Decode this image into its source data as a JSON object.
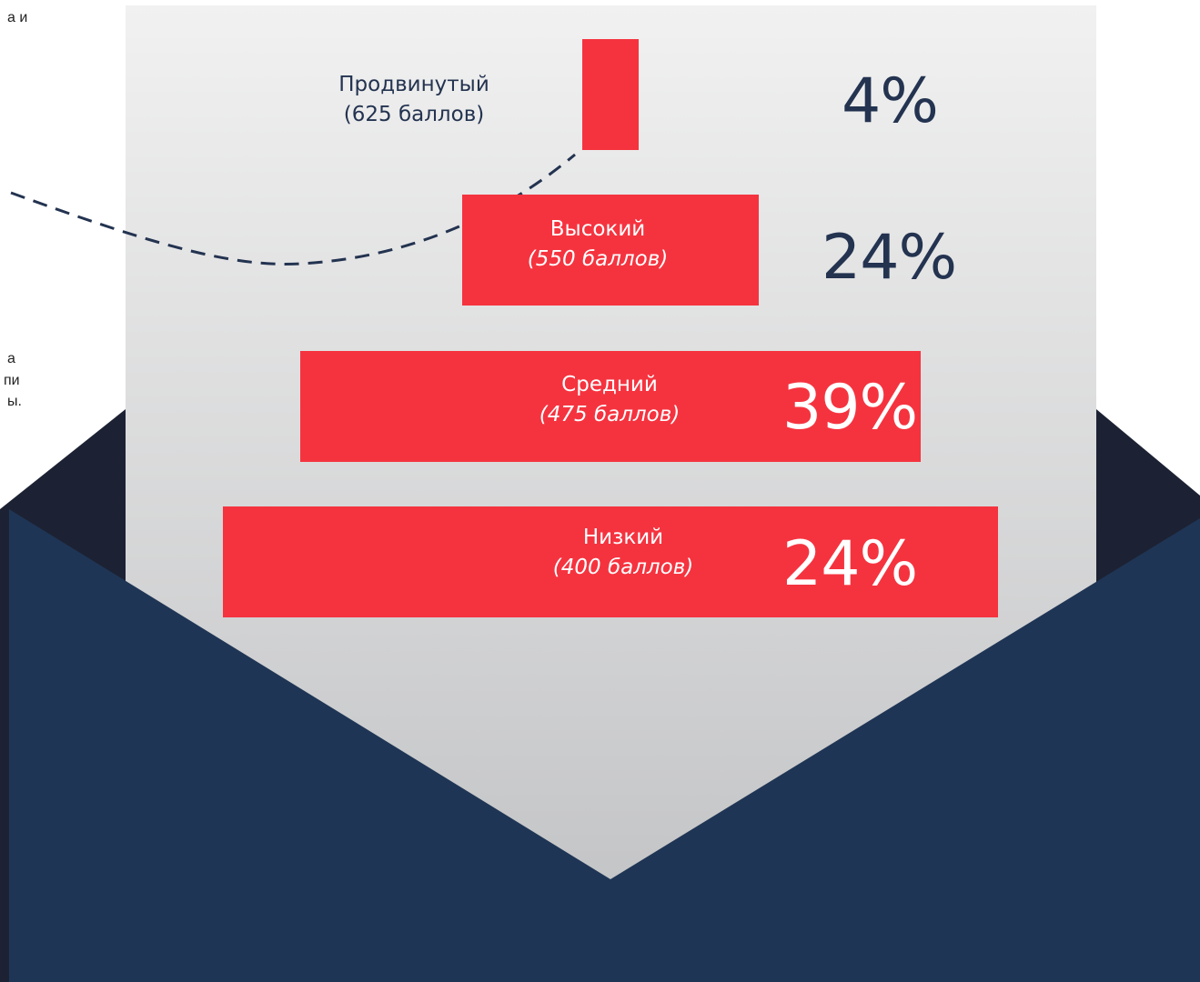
{
  "side_fragments": [
    "а и",
    "а",
    "пи",
    "ы."
  ],
  "colors": {
    "bar": "#f5333f",
    "navy": "#1f3555",
    "dark_navy": "#1c2233",
    "text_dark": "#233350",
    "white": "#ffffff",
    "paper_top": "#f1f1f1",
    "paper_bottom": "#bfc0c2"
  },
  "chart_data": {
    "type": "bar",
    "orientation": "horizontal-centered-funnel",
    "categories": [
      {
        "name": "Продвинутый",
        "score": "(625 баллов)"
      },
      {
        "name": "Высокий",
        "score": "(550 баллов)"
      },
      {
        "name": "Средний",
        "score": "(475 баллов)"
      },
      {
        "name": "Низкий",
        "score": "(400 баллов)"
      }
    ],
    "values": [
      4,
      24,
      39,
      24
    ],
    "value_labels": [
      "4%",
      "24%",
      "39%",
      "24%"
    ],
    "title": "",
    "xlabel": "",
    "ylabel": ""
  }
}
